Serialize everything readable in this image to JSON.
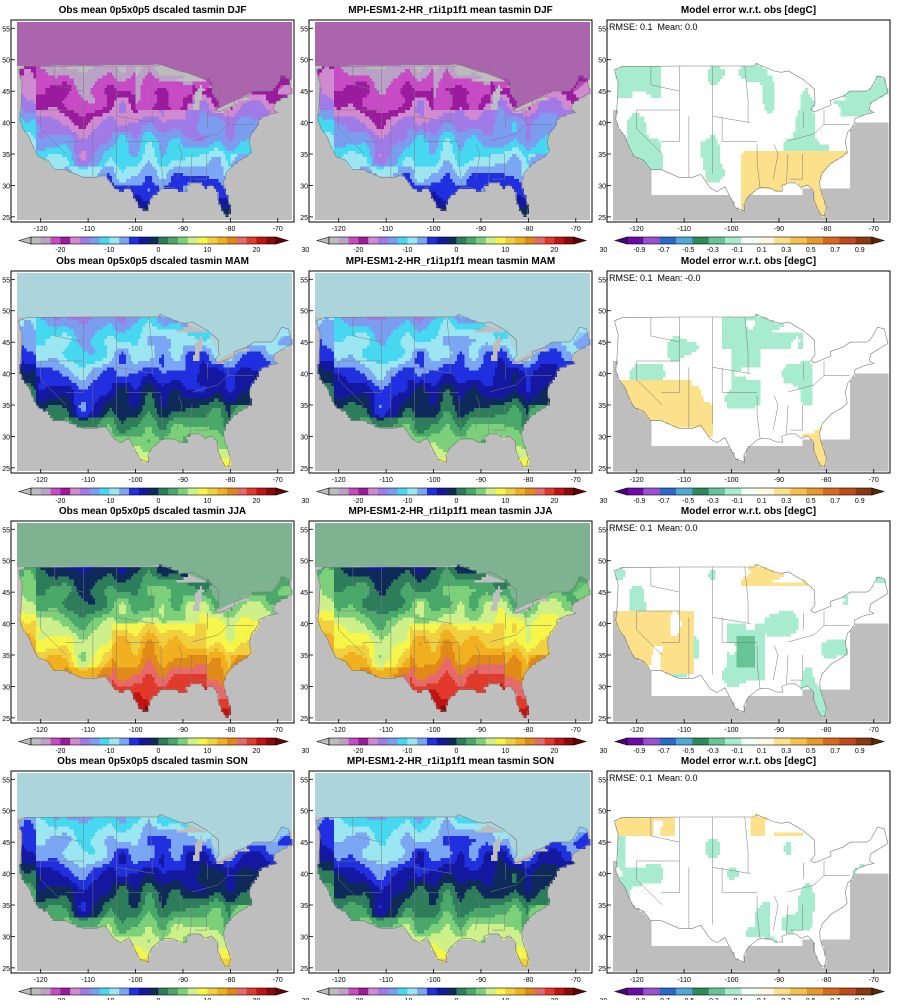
{
  "figure": {
    "seasons": [
      "DJF",
      "MAM",
      "JJA",
      "SON"
    ]
  },
  "colors": {
    "background": "#ffffff",
    "land_mask_gray": "#bebebe",
    "border_lines": "#7a7a7a",
    "frame": "#000000"
  },
  "colorbars": {
    "abs": {
      "colors": [
        "#bcbcbc",
        "#b9a2c6",
        "#c64bc4",
        "#9a1b9e",
        "#d08ad0",
        "#a07be8",
        "#7c9cf0",
        "#46d8f0",
        "#9ce6f2",
        "#7aa6f4",
        "#2030e0",
        "#1418a0",
        "#0e2a5a",
        "#2e7d5a",
        "#4aa86a",
        "#7dd07a",
        "#cdf08a",
        "#f6f64a",
        "#f0d040",
        "#f0b020",
        "#e08a18",
        "#e66a6a",
        "#e23a2a",
        "#c01414",
        "#8a0a0a"
      ],
      "min_color": "#bcbcbc",
      "max_color": "#6a0000",
      "tick_labels": [
        "-20",
        "-10",
        "0",
        "10",
        "20",
        "30"
      ]
    },
    "diff": {
      "colors": [
        "#6e0aa8",
        "#9a50d0",
        "#2a6ac8",
        "#4fa8d8",
        "#2e8a5a",
        "#66c496",
        "#a8ecd0",
        "#f0fff8",
        "#fff8e0",
        "#fce08a",
        "#f6c04a",
        "#e69a2a",
        "#d86a20",
        "#c04a18",
        "#8a3a10"
      ],
      "min_color": "#4a0080",
      "max_color": "#5a2a08",
      "tick_labels": [
        "-0.9",
        "-0.7",
        "-0.5",
        "-0.3",
        "-0.1",
        "0.1",
        "0.3",
        "0.5",
        "0.7",
        "0.9"
      ]
    }
  },
  "chart_data": [
    {
      "type": "heatmap",
      "panel": "obs",
      "season": "DJF",
      "title": "Obs mean 0p5x0p5 dscaled tasmin DJF",
      "xlim": [
        -125,
        -67
      ],
      "ylim": [
        24.5,
        56
      ],
      "xticks": [
        "-120",
        "-110",
        "-100",
        "-90",
        "-80",
        "-70"
      ],
      "yticks": [
        "55",
        "50",
        "45",
        "40",
        "35",
        "30",
        "25"
      ],
      "colorbar": "abs"
    },
    {
      "type": "heatmap",
      "panel": "model",
      "season": "DJF",
      "title": "MPI-ESM1-2-HR_r1i1p1f1 mean tasmin DJF",
      "xlim": [
        -125,
        -67
      ],
      "ylim": [
        24.5,
        56
      ],
      "xticks": [
        "-120",
        "-110",
        "-100",
        "-90",
        "-80",
        "-70"
      ],
      "yticks": [
        "55",
        "50",
        "45",
        "40",
        "35",
        "30",
        "25"
      ],
      "colorbar": "abs"
    },
    {
      "type": "heatmap",
      "panel": "error",
      "season": "DJF",
      "title": "Model error w.r.t. obs [degC]",
      "stats": "RMSE: 0.1  Mean: 0.0",
      "xlim": [
        -125,
        -67
      ],
      "ylim": [
        24.5,
        56
      ],
      "xticks": [
        "-120",
        "-110",
        "-100",
        "-90",
        "-80",
        "-70"
      ],
      "yticks": [
        "55",
        "50",
        "45",
        "40",
        "35",
        "30",
        "25"
      ],
      "colorbar": "diff"
    },
    {
      "type": "heatmap",
      "panel": "obs",
      "season": "MAM",
      "title": "Obs mean 0p5x0p5 dscaled tasmin MAM",
      "xlim": [
        -125,
        -67
      ],
      "ylim": [
        24.5,
        56
      ],
      "xticks": [
        "-120",
        "-110",
        "-100",
        "-90",
        "-80",
        "-70"
      ],
      "yticks": [
        "55",
        "50",
        "45",
        "40",
        "35",
        "30",
        "25"
      ],
      "colorbar": "abs"
    },
    {
      "type": "heatmap",
      "panel": "model",
      "season": "MAM",
      "title": "MPI-ESM1-2-HR_r1i1p1f1 mean tasmin MAM",
      "xlim": [
        -125,
        -67
      ],
      "ylim": [
        24.5,
        56
      ],
      "xticks": [
        "-120",
        "-110",
        "-100",
        "-90",
        "-80",
        "-70"
      ],
      "yticks": [
        "55",
        "50",
        "45",
        "40",
        "35",
        "30",
        "25"
      ],
      "colorbar": "abs"
    },
    {
      "type": "heatmap",
      "panel": "error",
      "season": "MAM",
      "title": "Model error w.r.t. obs [degC]",
      "stats": "RMSE: 0.1  Mean: -0.0",
      "xlim": [
        -125,
        -67
      ],
      "ylim": [
        24.5,
        56
      ],
      "xticks": [
        "-120",
        "-110",
        "-100",
        "-90",
        "-80",
        "-70"
      ],
      "yticks": [
        "55",
        "50",
        "45",
        "40",
        "35",
        "30",
        "25"
      ],
      "colorbar": "diff"
    },
    {
      "type": "heatmap",
      "panel": "obs",
      "season": "JJA",
      "title": "Obs mean 0p5x0p5 dscaled tasmin JJA",
      "xlim": [
        -125,
        -67
      ],
      "ylim": [
        24.5,
        56
      ],
      "xticks": [
        "-120",
        "-110",
        "-100",
        "-90",
        "-80",
        "-70"
      ],
      "yticks": [
        "55",
        "50",
        "45",
        "40",
        "35",
        "30",
        "25"
      ],
      "colorbar": "abs"
    },
    {
      "type": "heatmap",
      "panel": "model",
      "season": "JJA",
      "title": "MPI-ESM1-2-HR_r1i1p1f1 mean tasmin JJA",
      "xlim": [
        -125,
        -67
      ],
      "ylim": [
        24.5,
        56
      ],
      "xticks": [
        "-120",
        "-110",
        "-100",
        "-90",
        "-80",
        "-70"
      ],
      "yticks": [
        "55",
        "50",
        "45",
        "40",
        "35",
        "30",
        "25"
      ],
      "colorbar": "abs"
    },
    {
      "type": "heatmap",
      "panel": "error",
      "season": "JJA",
      "title": "Model error w.r.t. obs [degC]",
      "stats": "RMSE: 0.1  Mean: 0.0",
      "xlim": [
        -125,
        -67
      ],
      "ylim": [
        24.5,
        56
      ],
      "xticks": [
        "-120",
        "-110",
        "-100",
        "-90",
        "-80",
        "-70"
      ],
      "yticks": [
        "55",
        "50",
        "45",
        "40",
        "35",
        "30",
        "25"
      ],
      "colorbar": "diff"
    },
    {
      "type": "heatmap",
      "panel": "obs",
      "season": "SON",
      "title": "Obs mean 0p5x0p5 dscaled tasmin SON",
      "xlim": [
        -125,
        -67
      ],
      "ylim": [
        24.5,
        56
      ],
      "xticks": [
        "-120",
        "-110",
        "-100",
        "-90",
        "-80",
        "-70"
      ],
      "yticks": [
        "55",
        "50",
        "45",
        "40",
        "35",
        "30",
        "25"
      ],
      "colorbar": "abs"
    },
    {
      "type": "heatmap",
      "panel": "model",
      "season": "SON",
      "title": "MPI-ESM1-2-HR_r1i1p1f1 mean tasmin SON",
      "xlim": [
        -125,
        -67
      ],
      "ylim": [
        24.5,
        56
      ],
      "xticks": [
        "-120",
        "-110",
        "-100",
        "-90",
        "-80",
        "-70"
      ],
      "yticks": [
        "55",
        "50",
        "45",
        "40",
        "35",
        "30",
        "25"
      ],
      "colorbar": "abs"
    },
    {
      "type": "heatmap",
      "panel": "error",
      "season": "SON",
      "title": "Model error w.r.t. obs [degC]",
      "stats": "RMSE: 0.1  Mean: 0.0",
      "xlim": [
        -125,
        -67
      ],
      "ylim": [
        24.5,
        56
      ],
      "xticks": [
        "-120",
        "-110",
        "-100",
        "-90",
        "-80",
        "-70"
      ],
      "yticks": [
        "55",
        "50",
        "45",
        "40",
        "35",
        "30",
        "25"
      ],
      "colorbar": "diff"
    }
  ]
}
